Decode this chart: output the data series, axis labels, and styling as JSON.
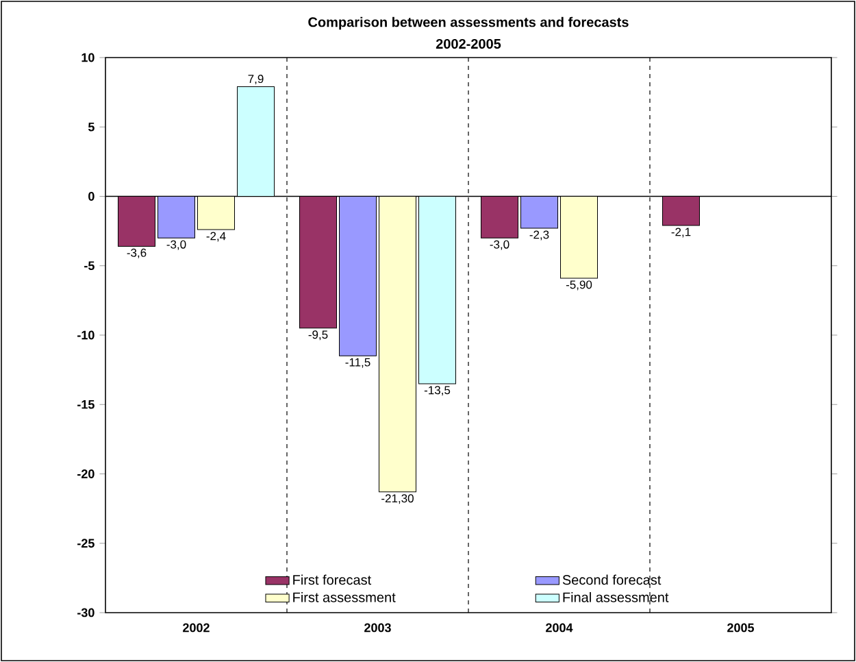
{
  "chart_data": {
    "type": "bar",
    "title": "Comparison between assessments and forecasts",
    "subtitle": "2002-2005",
    "categories": [
      "2002",
      "2003",
      "2004",
      "2005"
    ],
    "series": [
      {
        "name": "First forecast",
        "color": "#993366",
        "values": [
          -3.6,
          -9.5,
          -3.0,
          -2.1
        ],
        "value_labels": [
          "-3,6",
          "-9,5",
          "-3,0",
          "-2,1"
        ]
      },
      {
        "name": "Second forecast",
        "color": "#9999ff",
        "values": [
          -3.0,
          -11.5,
          -2.3,
          null
        ],
        "value_labels": [
          "-3,0",
          "-11,5",
          "-2,3",
          null
        ]
      },
      {
        "name": "First assessment",
        "color": "#ffffcc",
        "values": [
          -2.4,
          -21.3,
          -5.9,
          null
        ],
        "value_labels": [
          "-2,4",
          "-21,30",
          "-5,90",
          null
        ]
      },
      {
        "name": "Final assessment",
        "color": "#ccffff",
        "values": [
          7.9,
          -13.5,
          null,
          null
        ],
        "value_labels": [
          "7,9",
          "-13,5",
          null,
          null
        ]
      }
    ],
    "ylim": [
      -30,
      10
    ],
    "yticks": [
      -30,
      -25,
      -20,
      -15,
      -10,
      -5,
      0,
      5,
      10
    ],
    "grid": "x",
    "legend": "bottom"
  }
}
